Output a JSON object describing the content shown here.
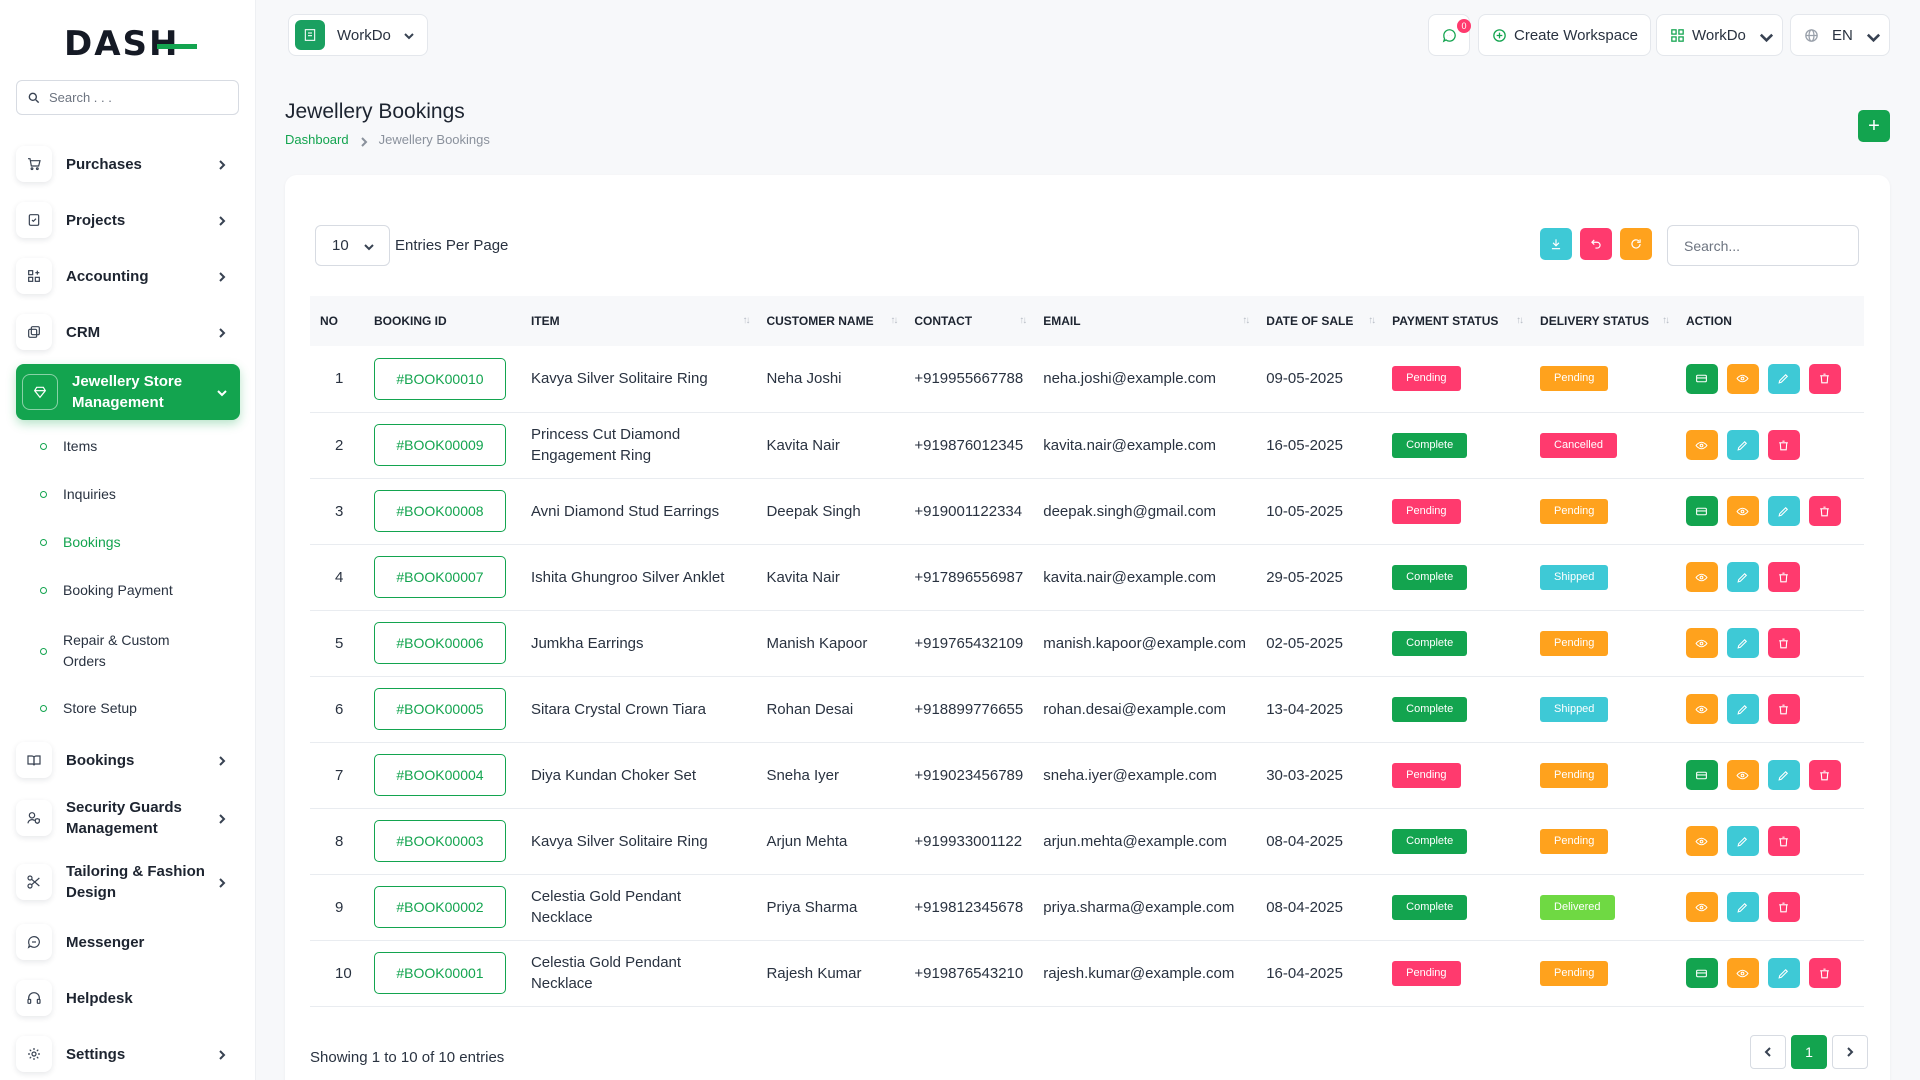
{
  "brand": {
    "logo_text": "DASH"
  },
  "sidebar": {
    "search_placeholder": "Search . . .",
    "items": [
      {
        "label": "Purchases",
        "icon": "cart-icon",
        "has_chevron": true
      },
      {
        "label": "Projects",
        "icon": "checklist-icon",
        "has_chevron": true
      },
      {
        "label": "Accounting",
        "icon": "grid-plus-icon",
        "has_chevron": true
      },
      {
        "label": "CRM",
        "icon": "layers-icon",
        "has_chevron": true
      },
      {
        "label": "Jewellery Store Management",
        "icon": "gem-icon",
        "has_chevron": true,
        "active": true
      },
      {
        "label": "Bookings",
        "icon": "book-open-icon",
        "has_chevron": true
      },
      {
        "label": "Security Guards Management",
        "icon": "user-shield-icon",
        "has_chevron": true
      },
      {
        "label": "Tailoring & Fashion Design",
        "icon": "scissors-icon",
        "has_chevron": true
      },
      {
        "label": "Messenger",
        "icon": "chat-bubble-icon",
        "has_chevron": false
      },
      {
        "label": "Helpdesk",
        "icon": "headset-icon",
        "has_chevron": false
      },
      {
        "label": "Settings",
        "icon": "gear-icon",
        "has_chevron": true
      }
    ],
    "subitems": [
      {
        "label": "Items"
      },
      {
        "label": "Inquiries"
      },
      {
        "label": "Bookings",
        "active": true
      },
      {
        "label": "Booking Payment"
      },
      {
        "label": "Repair & Custom Orders"
      },
      {
        "label": "Store Setup"
      }
    ]
  },
  "header": {
    "workspace": "WorkDo",
    "notification_count": "0",
    "create_workspace": "Create Workspace",
    "workspace_menu": "WorkDo",
    "language": "EN"
  },
  "page": {
    "title": "Jewellery Bookings",
    "breadcrumb": [
      "Dashboard",
      "Jewellery Bookings"
    ],
    "add_label": "+"
  },
  "table_controls": {
    "per_page": "10",
    "per_page_label": "Entries Per Page",
    "search_placeholder": "Search..."
  },
  "columns": [
    "NO",
    "BOOKING ID",
    "ITEM",
    "CUSTOMER NAME",
    "CONTACT",
    "EMAIL",
    "DATE OF SALE",
    "PAYMENT STATUS",
    "DELIVERY STATUS",
    "ACTION"
  ],
  "rows": [
    {
      "no": "1",
      "booking_id": "#BOOK00010",
      "item": "Kavya Silver Solitaire Ring",
      "customer": "Neha Joshi",
      "contact": "+919955667788",
      "email": "neha.joshi@example.com",
      "date": "09-05-2025",
      "payment": "Pending",
      "delivery": "Pending",
      "has_pay": true
    },
    {
      "no": "2",
      "booking_id": "#BOOK00009",
      "item": "Princess Cut Diamond Engagement Ring",
      "customer": "Kavita Nair",
      "contact": "+919876012345",
      "email": "kavita.nair@example.com",
      "date": "16-05-2025",
      "payment": "Complete",
      "delivery": "Cancelled",
      "has_pay": false
    },
    {
      "no": "3",
      "booking_id": "#BOOK00008",
      "item": "Avni Diamond Stud Earrings",
      "customer": "Deepak Singh",
      "contact": "+919001122334",
      "email": "deepak.singh@gmail.com",
      "date": "10-05-2025",
      "payment": "Pending",
      "delivery": "Pending",
      "has_pay": true
    },
    {
      "no": "4",
      "booking_id": "#BOOK00007",
      "item": "Ishita Ghungroo Silver Anklet",
      "customer": "Kavita Nair",
      "contact": "+917896556987",
      "email": "kavita.nair@example.com",
      "date": "29-05-2025",
      "payment": "Complete",
      "delivery": "Shipped",
      "has_pay": false
    },
    {
      "no": "5",
      "booking_id": "#BOOK00006",
      "item": "Jumkha Earrings",
      "customer": "Manish Kapoor",
      "contact": "+919765432109",
      "email": "manish.kapoor@example.com",
      "date": "02-05-2025",
      "payment": "Complete",
      "delivery": "Pending",
      "has_pay": false
    },
    {
      "no": "6",
      "booking_id": "#BOOK00005",
      "item": "Sitara Crystal Crown Tiara",
      "customer": "Rohan Desai",
      "contact": "+918899776655",
      "email": "rohan.desai@example.com",
      "date": "13-04-2025",
      "payment": "Complete",
      "delivery": "Shipped",
      "has_pay": false
    },
    {
      "no": "7",
      "booking_id": "#BOOK00004",
      "item": "Diya Kundan Choker Set",
      "customer": "Sneha Iyer",
      "contact": "+919023456789",
      "email": "sneha.iyer@example.com",
      "date": "30-03-2025",
      "payment": "Pending",
      "delivery": "Pending",
      "has_pay": true
    },
    {
      "no": "8",
      "booking_id": "#BOOK00003",
      "item": "Kavya Silver Solitaire Ring",
      "customer": "Arjun Mehta",
      "contact": "+919933001122",
      "email": "arjun.mehta@example.com",
      "date": "08-04-2025",
      "payment": "Complete",
      "delivery": "Pending",
      "has_pay": false
    },
    {
      "no": "9",
      "booking_id": "#BOOK00002",
      "item": "Celestia Gold Pendant Necklace",
      "customer": "Priya Sharma",
      "contact": "+919812345678",
      "email": "priya.sharma@example.com",
      "date": "08-04-2025",
      "payment": "Complete",
      "delivery": "Delivered",
      "has_pay": false
    },
    {
      "no": "10",
      "booking_id": "#BOOK00001",
      "item": "Celestia Gold Pendant Necklace",
      "customer": "Rajesh Kumar",
      "contact": "+919876543210",
      "email": "rajesh.kumar@example.com",
      "date": "16-04-2025",
      "payment": "Pending",
      "delivery": "Pending",
      "has_pay": true
    }
  ],
  "status_colors": {
    "Pending_payment": "#ff3a6e",
    "Complete": "#13a44f",
    "Pending_delivery": "#ffa21d",
    "Cancelled": "#ff3a6e",
    "Shipped": "#3ec9d6",
    "Delivered": "#6fd943"
  },
  "footer": {
    "showing": "Showing 1 to 10 of 10 entries",
    "current_page": "1"
  },
  "colors": {
    "accent": "#13a44f"
  }
}
